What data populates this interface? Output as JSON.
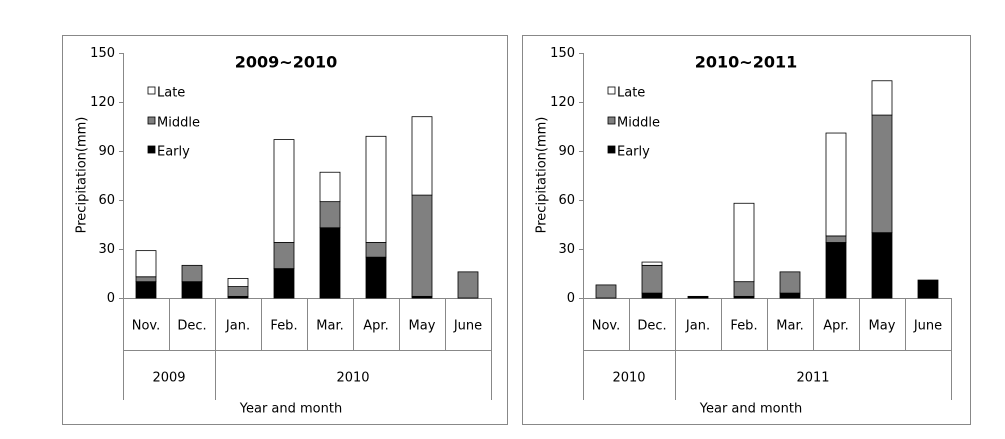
{
  "chart_data": [
    {
      "type": "stacked_bar",
      "title": "2009~2010",
      "y_label": "Precipitation(mm)",
      "x_label": "Year and month",
      "groups": [
        {
          "label": "2009",
          "categories": [
            "Nov.",
            "Dec."
          ]
        },
        {
          "label": "2010",
          "categories": [
            "Jan.",
            "Feb.",
            "Mar.",
            "Apr.",
            "May",
            "June"
          ]
        }
      ],
      "series": [
        {
          "name": "Early",
          "color": "#000000",
          "values": [
            10,
            10,
            1,
            18,
            43,
            25,
            1,
            0
          ]
        },
        {
          "name": "Middle",
          "color": "#808080",
          "values": [
            3,
            10,
            6,
            16,
            16,
            9,
            62,
            16
          ]
        },
        {
          "name": "Late",
          "color": "#ffffff",
          "values": [
            16,
            0,
            5,
            63,
            18,
            65,
            48,
            0
          ]
        }
      ],
      "ylim": [
        0,
        150
      ],
      "yticks": [
        0,
        30,
        60,
        90,
        120,
        150
      ],
      "grid": false
    },
    {
      "type": "stacked_bar",
      "title": "2010~2011",
      "y_label": "Precipitation(mm)",
      "x_label": "Year and month",
      "groups": [
        {
          "label": "2010",
          "categories": [
            "Nov.",
            "Dec."
          ]
        },
        {
          "label": "2011",
          "categories": [
            "Jan.",
            "Feb.",
            "Mar.",
            "Apr.",
            "May",
            "June"
          ]
        }
      ],
      "series": [
        {
          "name": "Early",
          "color": "#000000",
          "values": [
            0,
            3,
            1,
            1,
            3,
            34,
            40,
            11
          ]
        },
        {
          "name": "Middle",
          "color": "#808080",
          "values": [
            8,
            17,
            0,
            9,
            13,
            4,
            72,
            0
          ]
        },
        {
          "name": "Late",
          "color": "#ffffff",
          "values": [
            0,
            2,
            0,
            48,
            0,
            63,
            21,
            0
          ]
        }
      ],
      "ylim": [
        0,
        150
      ],
      "yticks": [
        0,
        30,
        60,
        90,
        120,
        150
      ],
      "grid": false
    }
  ]
}
